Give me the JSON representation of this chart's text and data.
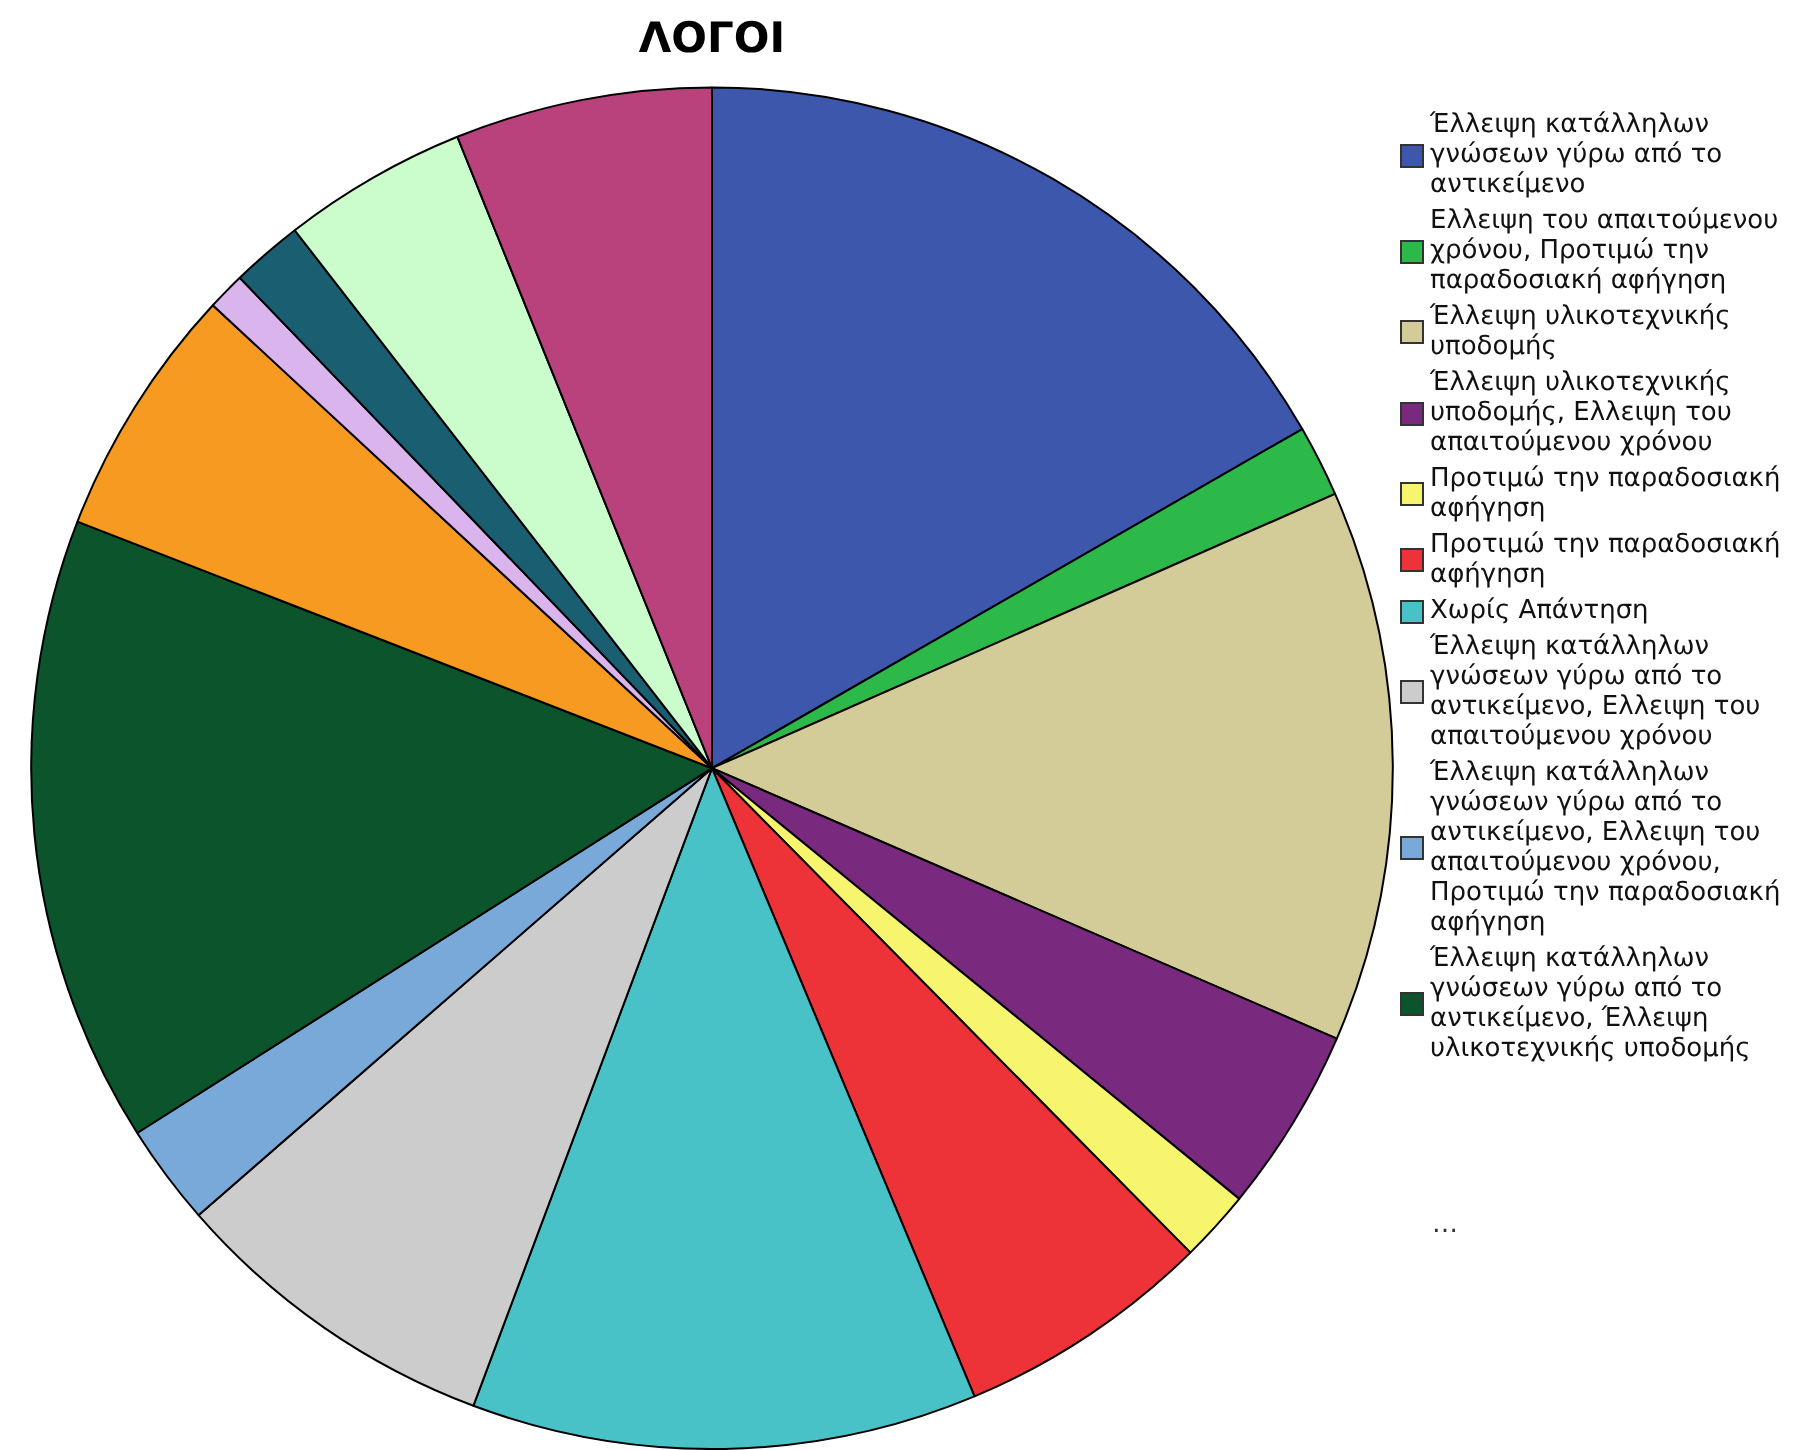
{
  "chart_data": {
    "type": "pie",
    "title": "ΛΟΓΟΙ",
    "categories": [
      "Έλλειψη κατάλληλων γνώσεων γύρω από το αντικείμενο",
      "Ελλειψη του απαιτούμενου χρόνου, Προτιμώ την παραδοσιακή αφήγηση",
      "Έλλειψη υλικοτεχνικής υποδομής",
      "Έλλειψη υλικοτεχνικής υποδομής, Ελλειψη του απαιτούμενου χρόνου",
      "Προτιμώ την παραδοσιακή αφήγηση",
      "Προτιμώ την παραδοσιακή αφήγηση",
      "Χωρίς Απάντηση",
      "Έλλειψη κατάλληλων γνώσεων γύρω από το αντικείμενο, Ελλειψη του απαιτούμενου χρόνου",
      "Έλλειψη κατάλληλων γνώσεων γύρω από το αντικείμενο, Ελλειψη του απαιτούμενου χρόνου, Προτιμώ την παραδοσιακή αφήγηση",
      "Έλλειψη κατάλληλων γνώσεων γύρω από το αντικείμενο, Έλλειψη υλικοτεχνικής υποδομής",
      null,
      null,
      null,
      null,
      null
    ],
    "values": [
      16.7,
      1.7,
      13.1,
      4.4,
      1.7,
      6.1,
      12.0,
      7.9,
      2.4,
      14.9,
      6.0,
      0.9,
      1.7,
      4.4,
      6.1
    ],
    "colors": [
      "#3d57ad",
      "#2db84a",
      "#d4cc98",
      "#7a2a7e",
      "#f7f56e",
      "#ee3338",
      "#48c2c6",
      "#cccccc",
      "#79a9d8",
      "#0b542c",
      "#f79a21",
      "#dab4ec",
      "#1a5e72",
      "#cbfccb",
      "#ba427c"
    ],
    "legend": "right",
    "annotations": [
      "…"
    ]
  }
}
